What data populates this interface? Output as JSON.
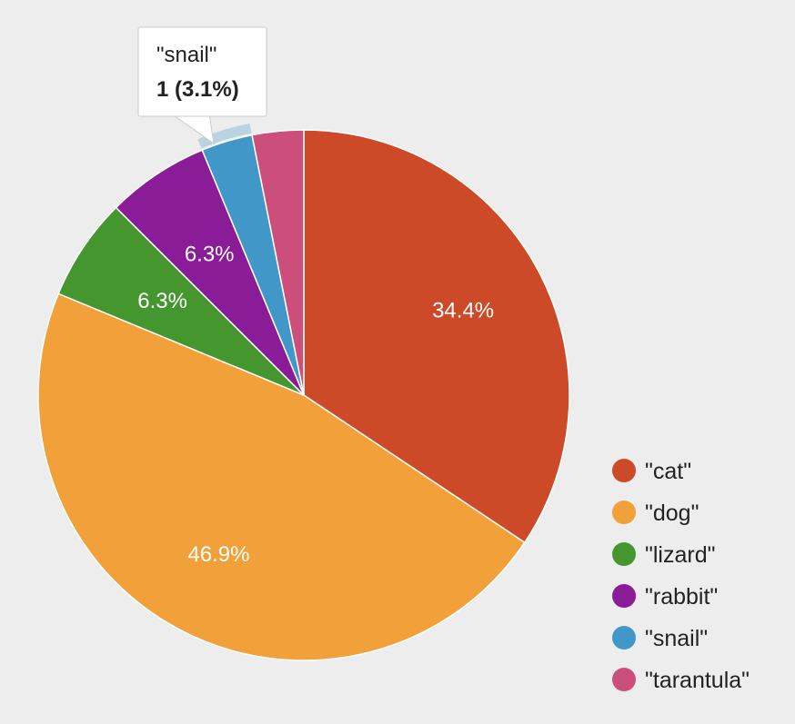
{
  "chart_data": {
    "type": "pie",
    "categories": [
      "\"cat\"",
      "\"dog\"",
      "\"lizard\"",
      "\"rabbit\"",
      "\"snail\"",
      "\"tarantula\""
    ],
    "values": [
      11,
      15,
      2,
      2,
      1,
      1
    ],
    "percent_labels": [
      "34.4%",
      "46.9%",
      "6.3%",
      "6.3%",
      "",
      ""
    ],
    "colors": [
      "#cd4a28",
      "#f2a03a",
      "#44962f",
      "#8b1c98",
      "#4197c8",
      "#cc4f7b"
    ],
    "legend_position": "right-bottom",
    "start": "top, clockwise",
    "highlighted": "\"snail\""
  },
  "tooltip": {
    "name": "\"snail\"",
    "value": "1 (3.1%)"
  }
}
